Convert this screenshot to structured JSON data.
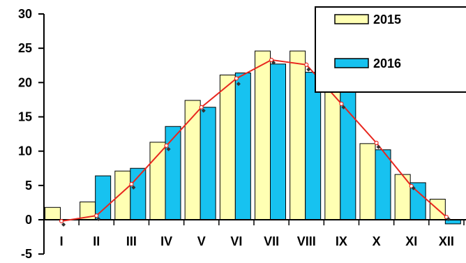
{
  "chart_data": {
    "type": "bar",
    "categories": [
      "I",
      "II",
      "III",
      "IV",
      "V",
      "VI",
      "VII",
      "VIII",
      "IX",
      "X",
      "XI",
      "XII"
    ],
    "series": [
      {
        "name": "2015",
        "values": [
          1.8,
          2.6,
          7.1,
          11.3,
          17.4,
          21.1,
          24.6,
          24.6,
          19.9,
          11.1,
          6.6,
          3.0
        ],
        "color": "#FFFFB3"
      },
      {
        "name": "2016",
        "values": [
          0.0,
          6.4,
          7.5,
          13.6,
          16.4,
          21.4,
          22.7,
          21.5,
          18.8,
          10.2,
          5.4,
          -0.6
        ],
        "color": "#17C2F0"
      }
    ],
    "line": {
      "values": [
        -0.2,
        0.6,
        5.2,
        10.8,
        16.4,
        20.6,
        23.3,
        22.6,
        16.9,
        11.2,
        4.9,
        0.4
      ],
      "color": "#E8261E",
      "marker_points": [
        -0.7,
        0.1,
        4.7,
        10.3,
        15.9,
        19.8,
        22.9,
        21.9,
        16.4,
        10.6,
        4.6,
        0.1
      ]
    },
    "y_ticks": [
      "-5",
      "0",
      "5",
      "10",
      "15",
      "20",
      "25",
      "30"
    ],
    "ylim": [
      -5,
      30
    ],
    "grid": false,
    "legend_position": "top-right"
  }
}
